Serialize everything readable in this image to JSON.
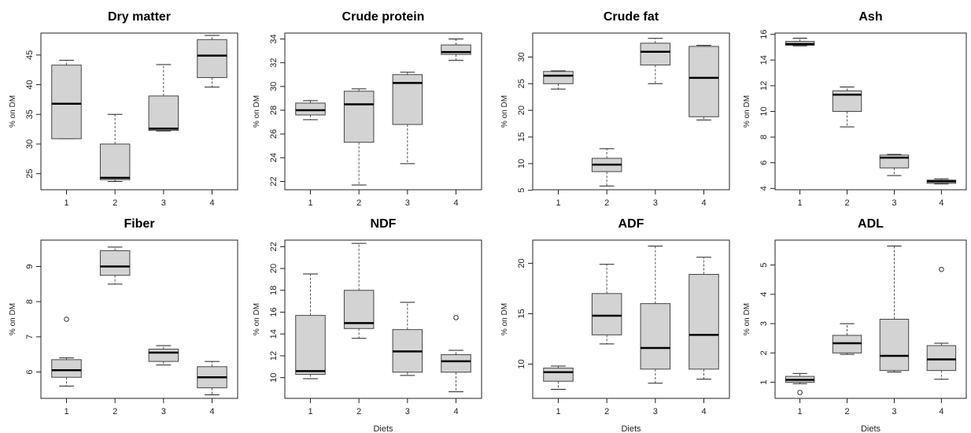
{
  "chart_data": [
    {
      "type": "boxplot",
      "title": "Dry matter",
      "ylabel": "% on DM",
      "xlabel": "",
      "categories": [
        "1",
        "2",
        "3",
        "4"
      ],
      "ylim": [
        22.3,
        48.7
      ],
      "yticks": [
        25,
        30,
        35,
        40,
        45
      ],
      "boxes": [
        {
          "min": 30.9,
          "q1": 30.9,
          "median": 36.8,
          "q3": 43.3,
          "max": 44.1,
          "outliers": []
        },
        {
          "min": 23.7,
          "q1": 24.0,
          "median": 24.3,
          "q3": 30.0,
          "max": 35.0,
          "outliers": []
        },
        {
          "min": 32.2,
          "q1": 32.3,
          "median": 32.6,
          "q3": 38.1,
          "max": 43.4,
          "outliers": []
        },
        {
          "min": 39.6,
          "q1": 41.2,
          "median": 44.9,
          "q3": 47.6,
          "max": 48.3,
          "outliers": []
        }
      ]
    },
    {
      "type": "boxplot",
      "title": "Crude protein",
      "ylabel": "% on DM",
      "xlabel": "",
      "categories": [
        "1",
        "2",
        "3",
        "4"
      ],
      "ylim": [
        21.3,
        34.5
      ],
      "yticks": [
        22,
        24,
        26,
        28,
        30,
        32,
        34
      ],
      "boxes": [
        {
          "min": 27.2,
          "q1": 27.6,
          "median": 28.0,
          "q3": 28.6,
          "max": 28.8,
          "outliers": []
        },
        {
          "min": 21.7,
          "q1": 25.3,
          "median": 28.5,
          "q3": 29.6,
          "max": 29.8,
          "outliers": []
        },
        {
          "min": 23.5,
          "q1": 26.8,
          "median": 30.3,
          "q3": 31.0,
          "max": 31.2,
          "outliers": []
        },
        {
          "min": 32.2,
          "q1": 32.7,
          "median": 32.9,
          "q3": 33.5,
          "max": 34.0,
          "outliers": []
        }
      ]
    },
    {
      "type": "boxplot",
      "title": "Crude fat",
      "ylabel": "% on DM",
      "xlabel": "",
      "categories": [
        "1",
        "2",
        "3",
        "4"
      ],
      "ylim": [
        5.1,
        34.5
      ],
      "yticks": [
        5,
        10,
        15,
        20,
        25,
        30
      ],
      "boxes": [
        {
          "min": 24.0,
          "q1": 25.0,
          "median": 26.5,
          "q3": 27.3,
          "max": 27.4,
          "outliers": []
        },
        {
          "min": 5.8,
          "q1": 8.5,
          "median": 9.8,
          "q3": 11.0,
          "max": 12.8,
          "outliers": []
        },
        {
          "min": 25.0,
          "q1": 28.5,
          "median": 31.0,
          "q3": 32.6,
          "max": 33.5,
          "outliers": []
        },
        {
          "min": 18.2,
          "q1": 18.8,
          "median": 26.1,
          "q3": 32.0,
          "max": 32.2,
          "outliers": []
        }
      ]
    },
    {
      "type": "boxplot",
      "title": "Ash",
      "ylabel": "% on DM",
      "xlabel": "",
      "categories": [
        "1",
        "2",
        "3",
        "4"
      ],
      "ylim": [
        3.9,
        16.1
      ],
      "yticks": [
        4,
        6,
        8,
        10,
        12,
        14,
        16
      ],
      "boxes": [
        {
          "min": 15.1,
          "q1": 15.15,
          "median": 15.25,
          "q3": 15.45,
          "max": 15.7,
          "outliers": []
        },
        {
          "min": 8.8,
          "q1": 10.0,
          "median": 11.3,
          "q3": 11.6,
          "max": 11.9,
          "outliers": []
        },
        {
          "min": 5.0,
          "q1": 5.6,
          "median": 6.4,
          "q3": 6.6,
          "max": 6.65,
          "outliers": []
        },
        {
          "min": 4.35,
          "q1": 4.4,
          "median": 4.55,
          "q3": 4.65,
          "max": 4.75,
          "outliers": []
        }
      ]
    },
    {
      "type": "boxplot",
      "title": "Fiber",
      "ylabel": "% on DM",
      "xlabel": "",
      "categories": [
        "1",
        "2",
        "3",
        "4"
      ],
      "ylim": [
        5.25,
        9.75
      ],
      "yticks": [
        6,
        7,
        8,
        9
      ],
      "boxes": [
        {
          "min": 5.6,
          "q1": 5.85,
          "median": 6.05,
          "q3": 6.35,
          "max": 6.4,
          "outliers": [
            7.5
          ]
        },
        {
          "min": 8.5,
          "q1": 8.75,
          "median": 9.0,
          "q3": 9.45,
          "max": 9.55,
          "outliers": []
        },
        {
          "min": 6.2,
          "q1": 6.3,
          "median": 6.55,
          "q3": 6.65,
          "max": 6.75,
          "outliers": []
        },
        {
          "min": 5.35,
          "q1": 5.55,
          "median": 5.85,
          "q3": 6.15,
          "max": 6.3,
          "outliers": []
        }
      ]
    },
    {
      "type": "boxplot",
      "title": "NDF",
      "ylabel": "% on DM",
      "xlabel": "Diets",
      "categories": [
        "1",
        "2",
        "3",
        "4"
      ],
      "ylim": [
        8.1,
        22.6
      ],
      "yticks": [
        10,
        12,
        14,
        16,
        18,
        20,
        22
      ],
      "boxes": [
        {
          "min": 9.9,
          "q1": 10.3,
          "median": 10.6,
          "q3": 15.7,
          "max": 19.5,
          "outliers": []
        },
        {
          "min": 13.6,
          "q1": 14.5,
          "median": 15.0,
          "q3": 18.0,
          "max": 22.3,
          "outliers": []
        },
        {
          "min": 10.2,
          "q1": 10.5,
          "median": 12.4,
          "q3": 14.4,
          "max": 16.9,
          "outliers": []
        },
        {
          "min": 8.7,
          "q1": 10.5,
          "median": 11.5,
          "q3": 12.1,
          "max": 12.5,
          "outliers": [
            15.5
          ]
        }
      ]
    },
    {
      "type": "boxplot",
      "title": "ADF",
      "ylabel": "% on DM",
      "xlabel": "Diets",
      "categories": [
        "1",
        "2",
        "3",
        "4"
      ],
      "ylim": [
        6.6,
        22.3
      ],
      "yticks": [
        10,
        15,
        20
      ],
      "boxes": [
        {
          "min": 7.5,
          "q1": 8.3,
          "median": 9.2,
          "q3": 9.6,
          "max": 9.8,
          "outliers": []
        },
        {
          "min": 12.0,
          "q1": 12.9,
          "median": 14.8,
          "q3": 17.0,
          "max": 19.9,
          "outliers": []
        },
        {
          "min": 8.1,
          "q1": 9.5,
          "median": 11.6,
          "q3": 16.0,
          "max": 21.7,
          "outliers": []
        },
        {
          "min": 8.5,
          "q1": 9.5,
          "median": 12.9,
          "q3": 18.9,
          "max": 20.6,
          "outliers": []
        }
      ]
    },
    {
      "type": "boxplot",
      "title": "ADL",
      "ylabel": "% on DM",
      "xlabel": "Diets",
      "categories": [
        "1",
        "2",
        "3",
        "4"
      ],
      "ylim": [
        0.45,
        5.85
      ],
      "yticks": [
        1,
        2,
        3,
        4,
        5
      ],
      "boxes": [
        {
          "min": 0.95,
          "q1": 1.0,
          "median": 1.08,
          "q3": 1.2,
          "max": 1.3,
          "outliers": [
            0.65
          ]
        },
        {
          "min": 1.95,
          "q1": 2.0,
          "median": 2.33,
          "q3": 2.6,
          "max": 3.0,
          "outliers": []
        },
        {
          "min": 1.35,
          "q1": 1.4,
          "median": 1.9,
          "q3": 3.15,
          "max": 5.65,
          "outliers": []
        },
        {
          "min": 1.1,
          "q1": 1.4,
          "median": 1.78,
          "q3": 2.25,
          "max": 2.33,
          "outliers": [
            4.85
          ]
        }
      ]
    }
  ],
  "colors": {
    "box_fill": "#d3d3d3",
    "box_stroke": "#444444",
    "median": "#000000",
    "whisker": "#555555",
    "axis": "#222222"
  }
}
